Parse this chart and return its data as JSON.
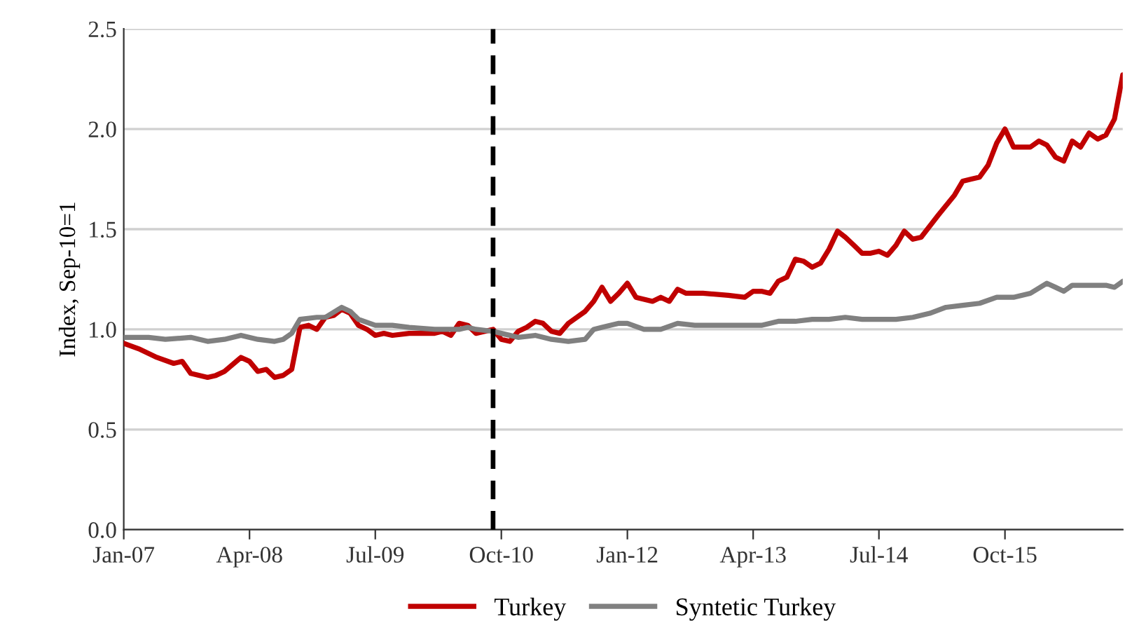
{
  "chart_data": {
    "type": "line",
    "ylabel": "Index, Sep-10=1",
    "xlim": [
      "2007-01",
      "2016-12"
    ],
    "ylim": [
      0,
      2.5
    ],
    "xticks": [
      {
        "value": "2007-01",
        "label": "Jan-07"
      },
      {
        "value": "2008-04",
        "label": "Apr-08"
      },
      {
        "value": "2009-07",
        "label": "Jul-09"
      },
      {
        "value": "2010-10",
        "label": "Oct-10"
      },
      {
        "value": "2012-01",
        "label": "Jan-12"
      },
      {
        "value": "2013-04",
        "label": "Apr-13"
      },
      {
        "value": "2014-07",
        "label": "Jul-14"
      },
      {
        "value": "2015-10",
        "label": "Oct-15"
      }
    ],
    "yticks": [
      {
        "value": 0,
        "label": "0.0"
      },
      {
        "value": 0.5,
        "label": "0.5"
      },
      {
        "value": 1,
        "label": "1.0"
      },
      {
        "value": 1.5,
        "label": "1.5"
      },
      {
        "value": 2,
        "label": "2.0"
      },
      {
        "value": 2.5,
        "label": "2.5"
      }
    ],
    "grid": "y",
    "legend": "bottom",
    "marker": "none",
    "line_style": "solid",
    "ref_lines": [
      {
        "axis": "x",
        "value": "2010-09",
        "label": null,
        "color": "#000000",
        "line_style": "dashed"
      }
    ],
    "series": [
      {
        "name": "Turkey",
        "color": "#c00000",
        "x": [
          "2007-01",
          "2007-03",
          "2007-05",
          "2007-07",
          "2007-08",
          "2007-09",
          "2007-11",
          "2007-12",
          "2008-01",
          "2008-03",
          "2008-04",
          "2008-05",
          "2008-06",
          "2008-07",
          "2008-08",
          "2008-09",
          "2008-10",
          "2008-11",
          "2008-12",
          "2009-01",
          "2009-02",
          "2009-03",
          "2009-04",
          "2009-05",
          "2009-06",
          "2009-07",
          "2009-08",
          "2009-09",
          "2009-11",
          "2010-02",
          "2010-03",
          "2010-04",
          "2010-05",
          "2010-06",
          "2010-07",
          "2010-09",
          "2010-10",
          "2010-11",
          "2010-12",
          "2011-01",
          "2011-02",
          "2011-03",
          "2011-04",
          "2011-05",
          "2011-06",
          "2011-08",
          "2011-09",
          "2011-10",
          "2011-11",
          "2011-12",
          "2012-01",
          "2012-02",
          "2012-04",
          "2012-05",
          "2012-06",
          "2012-07",
          "2012-08",
          "2012-10",
          "2013-01",
          "2013-03",
          "2013-04",
          "2013-05",
          "2013-06",
          "2013-07",
          "2013-08",
          "2013-09",
          "2013-10",
          "2013-11",
          "2013-12",
          "2014-01",
          "2014-02",
          "2014-03",
          "2014-04",
          "2014-05",
          "2014-06",
          "2014-07",
          "2014-08",
          "2014-09",
          "2014-10",
          "2014-11",
          "2014-12",
          "2015-02",
          "2015-04",
          "2015-05",
          "2015-06",
          "2015-07",
          "2015-08",
          "2015-09",
          "2015-10",
          "2015-11",
          "2015-12",
          "2016-01",
          "2016-02",
          "2016-03",
          "2016-04",
          "2016-05",
          "2016-06",
          "2016-07",
          "2016-08",
          "2016-09",
          "2016-10",
          "2016-11",
          "2016-12"
        ],
        "values": [
          0.93,
          0.9,
          0.86,
          0.83,
          0.84,
          0.78,
          0.76,
          0.77,
          0.79,
          0.86,
          0.84,
          0.79,
          0.8,
          0.76,
          0.77,
          0.8,
          1.01,
          1.02,
          1.0,
          1.06,
          1.07,
          1.1,
          1.08,
          1.02,
          1.0,
          0.97,
          0.98,
          0.97,
          0.98,
          0.98,
          0.99,
          0.97,
          1.03,
          1.02,
          0.98,
          1.0,
          0.95,
          0.94,
          0.99,
          1.01,
          1.04,
          1.03,
          0.99,
          0.98,
          1.03,
          1.09,
          1.14,
          1.21,
          1.14,
          1.18,
          1.23,
          1.16,
          1.14,
          1.16,
          1.14,
          1.2,
          1.18,
          1.18,
          1.17,
          1.16,
          1.19,
          1.19,
          1.18,
          1.24,
          1.26,
          1.35,
          1.34,
          1.31,
          1.33,
          1.4,
          1.49,
          1.46,
          1.42,
          1.38,
          1.38,
          1.39,
          1.37,
          1.42,
          1.49,
          1.45,
          1.46,
          1.57,
          1.67,
          1.74,
          1.75,
          1.76,
          1.82,
          1.93,
          2.0,
          1.91,
          1.91,
          1.91,
          1.94,
          1.92,
          1.86,
          1.84,
          1.94,
          1.91,
          1.98,
          1.95,
          1.97,
          2.05,
          2.27
        ]
      },
      {
        "name": "Syntetic Turkey",
        "color": "#808080",
        "x": [
          "2007-01",
          "2007-04",
          "2007-06",
          "2007-09",
          "2007-11",
          "2008-01",
          "2008-03",
          "2008-05",
          "2008-07",
          "2008-08",
          "2008-09",
          "2008-10",
          "2008-12",
          "2009-01",
          "2009-03",
          "2009-04",
          "2009-05",
          "2009-07",
          "2009-09",
          "2009-11",
          "2010-02",
          "2010-05",
          "2010-06",
          "2010-07",
          "2010-09",
          "2010-10",
          "2010-12",
          "2011-02",
          "2011-04",
          "2011-06",
          "2011-08",
          "2011-09",
          "2011-10",
          "2011-12",
          "2012-01",
          "2012-03",
          "2012-05",
          "2012-07",
          "2012-09",
          "2012-12",
          "2013-03",
          "2013-05",
          "2013-07",
          "2013-09",
          "2013-11",
          "2014-01",
          "2014-03",
          "2014-05",
          "2014-07",
          "2014-09",
          "2014-11",
          "2015-01",
          "2015-03",
          "2015-05",
          "2015-07",
          "2015-09",
          "2015-10",
          "2015-11",
          "2016-01",
          "2016-03",
          "2016-04",
          "2016-05",
          "2016-06",
          "2016-08",
          "2016-10",
          "2016-11",
          "2016-12"
        ],
        "values": [
          0.96,
          0.96,
          0.95,
          0.96,
          0.94,
          0.95,
          0.97,
          0.95,
          0.94,
          0.95,
          0.98,
          1.05,
          1.06,
          1.06,
          1.11,
          1.09,
          1.05,
          1.02,
          1.02,
          1.01,
          1.0,
          1.0,
          1.01,
          1.0,
          0.99,
          0.98,
          0.96,
          0.97,
          0.95,
          0.94,
          0.95,
          1.0,
          1.01,
          1.03,
          1.03,
          1.0,
          1.0,
          1.03,
          1.02,
          1.02,
          1.02,
          1.02,
          1.04,
          1.04,
          1.05,
          1.05,
          1.06,
          1.05,
          1.05,
          1.05,
          1.06,
          1.08,
          1.11,
          1.12,
          1.13,
          1.16,
          1.16,
          1.16,
          1.18,
          1.23,
          1.21,
          1.19,
          1.22,
          1.22,
          1.22,
          1.21,
          1.24
        ]
      }
    ]
  }
}
